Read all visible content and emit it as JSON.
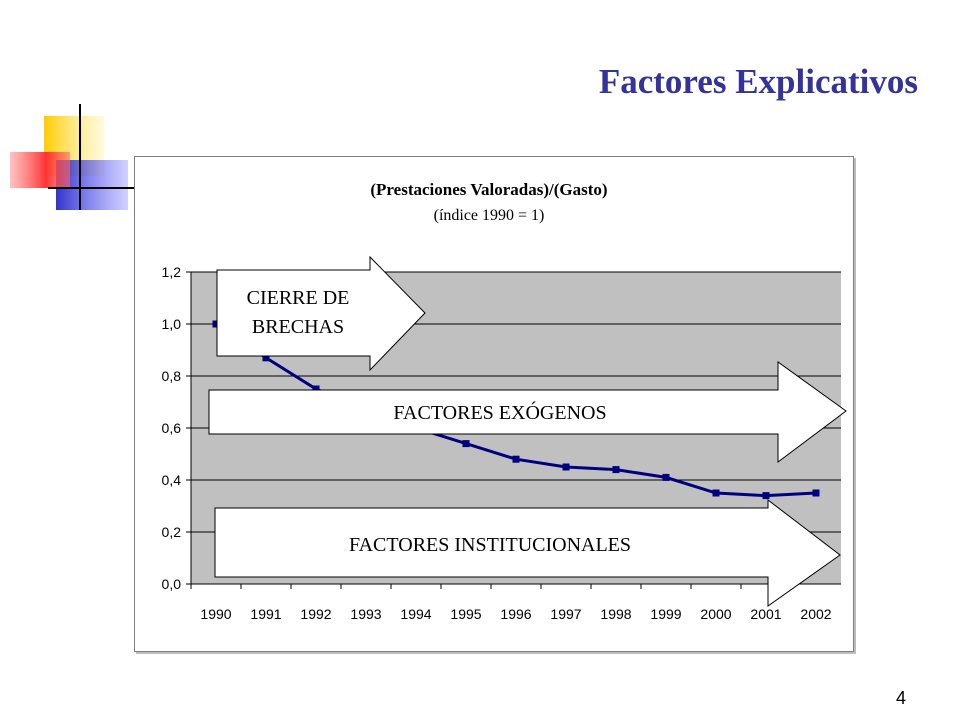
{
  "slide": {
    "title": "Factores Explicativos",
    "page_number": "4"
  },
  "colors": {
    "title": "#333399",
    "plot_bg": "#c0c0c0",
    "series": "#000080",
    "deco_yellow": "#ffd700",
    "deco_blue": "#3333cc",
    "deco_red": "#ff3333"
  },
  "chart_data": {
    "type": "line",
    "title": "(Prestaciones Valoradas)/(Gasto)",
    "subtitle": "(índice 1990 = 1)",
    "xlabel": "",
    "ylabel": "",
    "categories": [
      "1990",
      "1991",
      "1992",
      "1993",
      "1994",
      "1995",
      "1996",
      "1997",
      "1998",
      "1999",
      "2000",
      "2001",
      "2002"
    ],
    "series": [
      {
        "values": [
          1.0,
          0.87,
          0.75,
          0.67,
          0.6,
          0.54,
          0.48,
          0.45,
          0.44,
          0.41,
          0.35,
          0.34,
          0.35
        ]
      }
    ],
    "ylim": [
      0,
      1.2
    ],
    "yticks": [
      "0,0",
      "0,2",
      "0,4",
      "0,6",
      "0,8",
      "1,0",
      "1,2"
    ],
    "grid": true,
    "legend": "none",
    "annotations": [
      {
        "text_lines": [
          "CIERRE DE",
          "BRECHAS"
        ]
      },
      {
        "text": "FACTORES EXÓGENOS"
      },
      {
        "text": "FACTORES INSTITUCIONALES"
      }
    ]
  }
}
